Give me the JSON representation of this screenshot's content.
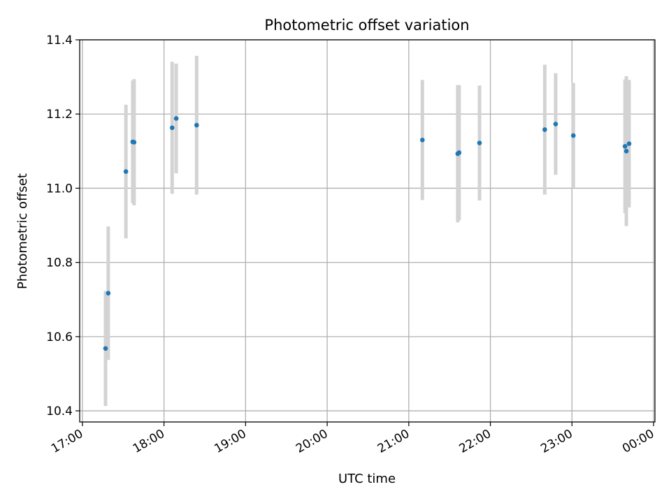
{
  "chart_data": {
    "type": "scatter",
    "title": "Photometric offset variation",
    "xlabel": "UTC time",
    "ylabel": "Photometric offset",
    "x_ticks": [
      "17:00",
      "18:00",
      "19:00",
      "20:00",
      "21:00",
      "22:00",
      "23:00",
      "00:00"
    ],
    "x_range": [
      "16:58",
      "00:01"
    ],
    "y_ticks": [
      "10.4",
      "10.6",
      "10.8",
      "11.0",
      "11.2",
      "11.4"
    ],
    "ylim": [
      10.37,
      11.4
    ],
    "grid": true,
    "colors": {
      "point": "#1f77b4",
      "errorbar": "#d3d3d3",
      "grid": "#b0b0b0"
    },
    "points": [
      {
        "x": "17:17",
        "y": 10.568,
        "yerr": 0.155
      },
      {
        "x": "17:19",
        "y": 10.717,
        "yerr": 0.18
      },
      {
        "x": "17:32",
        "y": 11.045,
        "yerr": 0.18
      },
      {
        "x": "17:37",
        "y": 11.125,
        "yerr": 0.165
      },
      {
        "x": "17:38",
        "y": 11.124,
        "yerr": 0.17
      },
      {
        "x": "18:06",
        "y": 11.163,
        "yerr": 0.178
      },
      {
        "x": "18:09",
        "y": 11.188,
        "yerr": 0.148
      },
      {
        "x": "18:24",
        "y": 11.17,
        "yerr": 0.187
      },
      {
        "x": "21:10",
        "y": 11.13,
        "yerr": 0.162
      },
      {
        "x": "21:36",
        "y": 11.093,
        "yerr": 0.185
      },
      {
        "x": "21:37",
        "y": 11.096,
        "yerr": 0.182
      },
      {
        "x": "21:52",
        "y": 11.122,
        "yerr": 0.155
      },
      {
        "x": "22:40",
        "y": 11.158,
        "yerr": 0.175
      },
      {
        "x": "22:48",
        "y": 11.173,
        "yerr": 0.137
      },
      {
        "x": "23:01",
        "y": 11.142,
        "yerr": 0.142
      },
      {
        "x": "23:39",
        "y": 11.113,
        "yerr": 0.18
      },
      {
        "x": "23:40",
        "y": 11.1,
        "yerr": 0.202
      },
      {
        "x": "23:42",
        "y": 11.12,
        "yerr": 0.172
      }
    ]
  }
}
